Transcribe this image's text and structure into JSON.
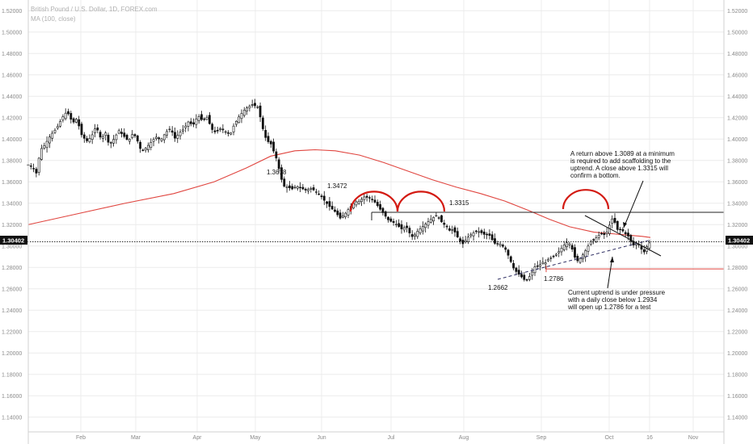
{
  "header": {
    "symbol_line": "British Pound / U.S. Dollar, 1D, FOREX.com",
    "indicator_line": "MA (100, close)"
  },
  "current_price": "1.30402",
  "colors": {
    "ma": "#e0453f",
    "candle": "#111111",
    "grid": "#ececec",
    "axis_text": "#8a8a8a",
    "resistance": "#222222",
    "support": "#e0453f",
    "arc": "#d31a12"
  },
  "chart_data": {
    "type": "candlestick",
    "title": "British Pound / U.S. Dollar, 1D, FOREX.com",
    "indicator": "MA (100, close)",
    "ylim": [
      1.13,
      1.53
    ],
    "y_ticks": [
      "1.52000",
      "1.50000",
      "1.48000",
      "1.46000",
      "1.44000",
      "1.42000",
      "1.40000",
      "1.38000",
      "1.36000",
      "1.34000",
      "1.32000",
      "1.30000",
      "1.28000",
      "1.26000",
      "1.24000",
      "1.22000",
      "1.20000",
      "1.18000",
      "1.16000",
      "1.14000"
    ],
    "x_ticks": [
      "Feb",
      "Mar",
      "Apr",
      "May",
      "Jun",
      "Jul",
      "Aug",
      "Sep",
      "Oct",
      "16",
      "Nov"
    ],
    "price_path": [
      [
        0,
        1.376
      ],
      [
        6,
        1.373
      ],
      [
        10,
        1.368
      ],
      [
        15,
        1.39
      ],
      [
        20,
        1.394
      ],
      [
        28,
        1.404
      ],
      [
        35,
        1.41
      ],
      [
        42,
        1.42
      ],
      [
        48,
        1.426
      ],
      [
        55,
        1.415
      ],
      [
        60,
        1.419
      ],
      [
        66,
        1.404
      ],
      [
        72,
        1.398
      ],
      [
        78,
        1.402
      ],
      [
        84,
        1.412
      ],
      [
        90,
        1.4
      ],
      [
        96,
        1.406
      ],
      [
        100,
        1.394
      ],
      [
        106,
        1.4
      ],
      [
        112,
        1.408
      ],
      [
        118,
        1.403
      ],
      [
        124,
        1.398
      ],
      [
        130,
        1.406
      ],
      [
        136,
        1.397
      ],
      [
        140,
        1.388
      ],
      [
        146,
        1.392
      ],
      [
        152,
        1.397
      ],
      [
        158,
        1.402
      ],
      [
        164,
        1.399
      ],
      [
        170,
        1.406
      ],
      [
        176,
        1.41
      ],
      [
        182,
        1.4
      ],
      [
        186,
        1.405
      ],
      [
        192,
        1.409
      ],
      [
        198,
        1.416
      ],
      [
        204,
        1.413
      ],
      [
        210,
        1.422
      ],
      [
        216,
        1.417
      ],
      [
        222,
        1.421
      ],
      [
        226,
        1.41
      ],
      [
        232,
        1.406
      ],
      [
        238,
        1.41
      ],
      [
        244,
        1.407
      ],
      [
        250,
        1.404
      ],
      [
        254,
        1.412
      ],
      [
        260,
        1.42
      ],
      [
        266,
        1.426
      ],
      [
        272,
        1.43
      ],
      [
        278,
        1.432
      ],
      [
        284,
        1.43
      ],
      [
        288,
        1.418
      ],
      [
        292,
        1.404
      ],
      [
        296,
        1.398
      ],
      [
        300,
        1.396
      ],
      [
        304,
        1.388
      ],
      [
        308,
        1.38
      ],
      [
        312,
        1.366
      ],
      [
        316,
        1.356
      ],
      [
        322,
        1.355
      ],
      [
        326,
        1.353
      ],
      [
        332,
        1.356
      ],
      [
        338,
        1.354
      ],
      [
        344,
        1.352
      ],
      [
        350,
        1.354
      ],
      [
        356,
        1.351
      ],
      [
        362,
        1.347
      ],
      [
        368,
        1.341
      ],
      [
        374,
        1.336
      ],
      [
        380,
        1.332
      ],
      [
        386,
        1.326
      ],
      [
        392,
        1.33
      ],
      [
        398,
        1.336
      ],
      [
        404,
        1.341
      ],
      [
        410,
        1.342
      ],
      [
        416,
        1.346
      ],
      [
        422,
        1.345
      ],
      [
        428,
        1.342
      ],
      [
        432,
        1.338
      ],
      [
        436,
        1.334
      ],
      [
        440,
        1.33
      ],
      [
        446,
        1.324
      ],
      [
        452,
        1.322
      ],
      [
        456,
        1.32
      ],
      [
        462,
        1.316
      ],
      [
        468,
        1.318
      ],
      [
        472,
        1.312
      ],
      [
        476,
        1.308
      ],
      [
        482,
        1.314
      ],
      [
        488,
        1.318
      ],
      [
        494,
        1.322
      ],
      [
        500,
        1.326
      ],
      [
        506,
        1.329
      ],
      [
        512,
        1.322
      ],
      [
        518,
        1.318
      ],
      [
        522,
        1.314
      ],
      [
        526,
        1.316
      ],
      [
        530,
        1.31
      ],
      [
        534,
        1.305
      ],
      [
        538,
        1.302
      ],
      [
        544,
        1.308
      ],
      [
        550,
        1.312
      ],
      [
        556,
        1.314
      ],
      [
        562,
        1.312
      ],
      [
        566,
        1.31
      ],
      [
        570,
        1.311
      ],
      [
        574,
        1.306
      ],
      [
        578,
        1.302
      ],
      [
        584,
        1.302
      ],
      [
        590,
        1.298
      ],
      [
        596,
        1.288
      ],
      [
        600,
        1.28
      ],
      [
        604,
        1.276
      ],
      [
        608,
        1.273
      ],
      [
        612,
        1.27
      ],
      [
        616,
        1.267
      ],
      [
        620,
        1.271
      ],
      [
        624,
        1.276
      ],
      [
        628,
        1.282
      ],
      [
        632,
        1.281
      ],
      [
        636,
        1.285
      ],
      [
        640,
        1.284
      ],
      [
        644,
        1.288
      ],
      [
        650,
        1.29
      ],
      [
        656,
        1.294
      ],
      [
        662,
        1.3
      ],
      [
        668,
        1.304
      ],
      [
        672,
        1.3
      ],
      [
        676,
        1.29
      ],
      [
        680,
        1.286
      ],
      [
        684,
        1.289
      ],
      [
        690,
        1.296
      ],
      [
        696,
        1.304
      ],
      [
        702,
        1.307
      ],
      [
        706,
        1.31
      ],
      [
        710,
        1.312
      ],
      [
        714,
        1.31
      ],
      [
        718,
        1.316
      ],
      [
        722,
        1.326
      ],
      [
        726,
        1.322
      ],
      [
        730,
        1.314
      ],
      [
        734,
        1.316
      ],
      [
        738,
        1.312
      ],
      [
        742,
        1.31
      ],
      [
        746,
        1.304
      ],
      [
        750,
        1.3
      ],
      [
        754,
        1.304
      ],
      [
        758,
        1.298
      ],
      [
        762,
        1.294
      ],
      [
        766,
        1.3
      ],
      [
        770,
        1.304
      ]
    ],
    "ma_path": [
      [
        0,
        1.32
      ],
      [
        60,
        1.33
      ],
      [
        120,
        1.34
      ],
      [
        180,
        1.349
      ],
      [
        230,
        1.36
      ],
      [
        270,
        1.373
      ],
      [
        300,
        1.384
      ],
      [
        330,
        1.389
      ],
      [
        355,
        1.39
      ],
      [
        380,
        1.389
      ],
      [
        410,
        1.385
      ],
      [
        440,
        1.378
      ],
      [
        470,
        1.37
      ],
      [
        500,
        1.362
      ],
      [
        530,
        1.355
      ],
      [
        560,
        1.349
      ],
      [
        590,
        1.342
      ],
      [
        620,
        1.333
      ],
      [
        645,
        1.325
      ],
      [
        670,
        1.318
      ],
      [
        700,
        1.313
      ],
      [
        730,
        1.311
      ],
      [
        760,
        1.309
      ],
      [
        770,
        1.308
      ]
    ],
    "lines": {
      "resistance_level": 1.3315,
      "support_level": 1.2786
    },
    "annotations": {
      "label_1_3618": "1.3618",
      "label_1_3472": "1.3472",
      "label_1_3315": "1.3315",
      "label_1_2662": "1.2662",
      "label_1_2786": "1.2786",
      "note_top": [
        "A return above 1.3089 at a minimum",
        "is required to add scaffolding to the",
        "uptrend. A close above 1.3315 will",
        "confirm a bottom."
      ],
      "note_bottom": [
        "Current uptrend is under pressure",
        "with a daily close below 1.2934",
        "will open up 1.2786 for a test"
      ]
    }
  }
}
